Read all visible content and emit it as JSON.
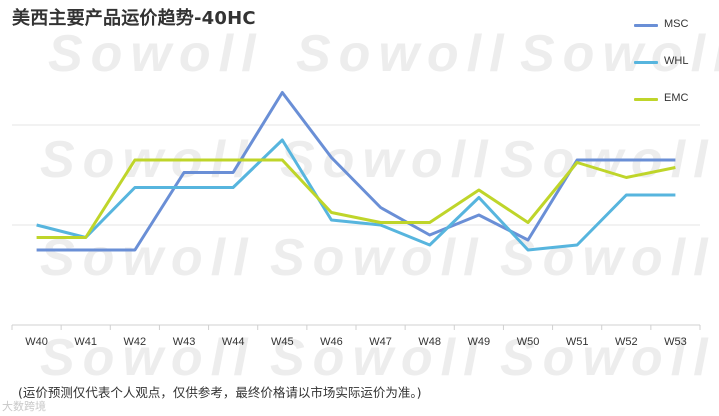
{
  "title": "美西主要产品运价趋势-40HC",
  "watermark": "Sowoll",
  "footnote": "(运价预测仅代表个人观点，仅供参考，最终价格请以市场实际运价为准。)",
  "corner_mark": "大数跨境",
  "chart_data": {
    "type": "line",
    "title": "美西主要产品运价趋势-40HC",
    "categories": [
      "W40",
      "W41",
      "W42",
      "W43",
      "W44",
      "W45",
      "W46",
      "W47",
      "W48",
      "W49",
      "W50",
      "W51",
      "W52",
      "W53"
    ],
    "series": [
      {
        "name": "MSC",
        "color": "#6A8FD6",
        "values": [
          30,
          30,
          30,
          61,
          61,
          93,
          67,
          47,
          36,
          44,
          34,
          66,
          66,
          66
        ]
      },
      {
        "name": "WHL",
        "color": "#57B5DE",
        "values": [
          40,
          35,
          55,
          55,
          55,
          74,
          42,
          40,
          32,
          51,
          30,
          32,
          52,
          52
        ]
      },
      {
        "name": "EMC",
        "color": "#BFD52A",
        "values": [
          35,
          35,
          66,
          66,
          66,
          66,
          45,
          41,
          41,
          54,
          41,
          65,
          59,
          63
        ]
      }
    ],
    "ylim": [
      0,
      120
    ],
    "xlabel": "",
    "ylabel": "",
    "grid": true,
    "legend_position": "top-right"
  }
}
